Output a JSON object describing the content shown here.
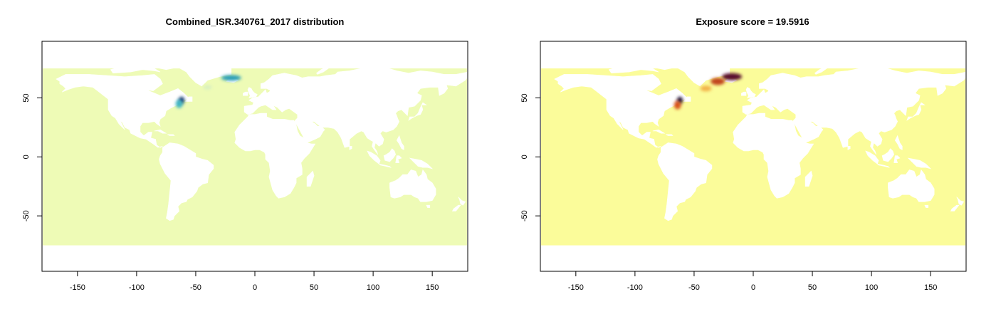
{
  "panels": [
    {
      "title": "Combined_ISR.340761_2017 distribution",
      "ocean_color": "#eefbb6",
      "hotspots": [
        {
          "lon": -62,
          "lat": 48,
          "rx": 4,
          "ry": 5,
          "color": "#08306b"
        },
        {
          "lon": -64,
          "lat": 45,
          "rx": 5,
          "ry": 6,
          "color": "#41b6c4"
        },
        {
          "lon": -20,
          "lat": 67,
          "rx": 14,
          "ry": 4,
          "color": "#2c9fb8"
        },
        {
          "lon": -40,
          "lat": 59,
          "rx": 6,
          "ry": 3,
          "color": "#d8efc0"
        }
      ]
    },
    {
      "title": "Exposure score = 19.5916",
      "ocean_color": "#fbfc9a",
      "hotspots": [
        {
          "lon": -62,
          "lat": 48,
          "rx": 4,
          "ry": 5,
          "color": "#1a0a33"
        },
        {
          "lon": -64,
          "lat": 44,
          "rx": 5,
          "ry": 6,
          "color": "#d9531e"
        },
        {
          "lon": -18,
          "lat": 68,
          "rx": 14,
          "ry": 5,
          "color": "#5a0c2d"
        },
        {
          "lon": -30,
          "lat": 64,
          "rx": 10,
          "ry": 5,
          "color": "#c1441b"
        },
        {
          "lon": -40,
          "lat": 58,
          "rx": 8,
          "ry": 4,
          "color": "#f2b24a"
        }
      ]
    }
  ],
  "axes": {
    "xlim": [
      -180,
      180
    ],
    "ylim": [
      -97,
      98
    ],
    "xticks": [
      -150,
      -100,
      -50,
      0,
      50,
      100,
      150
    ],
    "yticks": [
      50,
      0,
      -50
    ],
    "ocean_lat_range": [
      -75,
      75
    ]
  },
  "chart_data": [
    {
      "type": "heatmap",
      "title": "Combined_ISR.340761_2017 distribution",
      "xlabel": "",
      "ylabel": "",
      "xlim": [
        -180,
        180
      ],
      "ylim": [
        -97,
        98
      ],
      "xticks": [
        -150,
        -100,
        -50,
        0,
        50,
        100,
        150
      ],
      "yticks": [
        -50,
        0,
        50
      ],
      "high_values": [
        {
          "lon": -62,
          "lat": 48
        },
        {
          "lon": -20,
          "lat": 67
        }
      ]
    },
    {
      "type": "heatmap",
      "title": "Exposure score = 19.5916",
      "xlabel": "",
      "ylabel": "",
      "xlim": [
        -180,
        180
      ],
      "ylim": [
        -97,
        98
      ],
      "xticks": [
        -150,
        -100,
        -50,
        0,
        50,
        100,
        150
      ],
      "yticks": [
        -50,
        0,
        50
      ],
      "high_values": [
        {
          "lon": -62,
          "lat": 48
        },
        {
          "lon": -18,
          "lat": 68
        }
      ]
    }
  ]
}
